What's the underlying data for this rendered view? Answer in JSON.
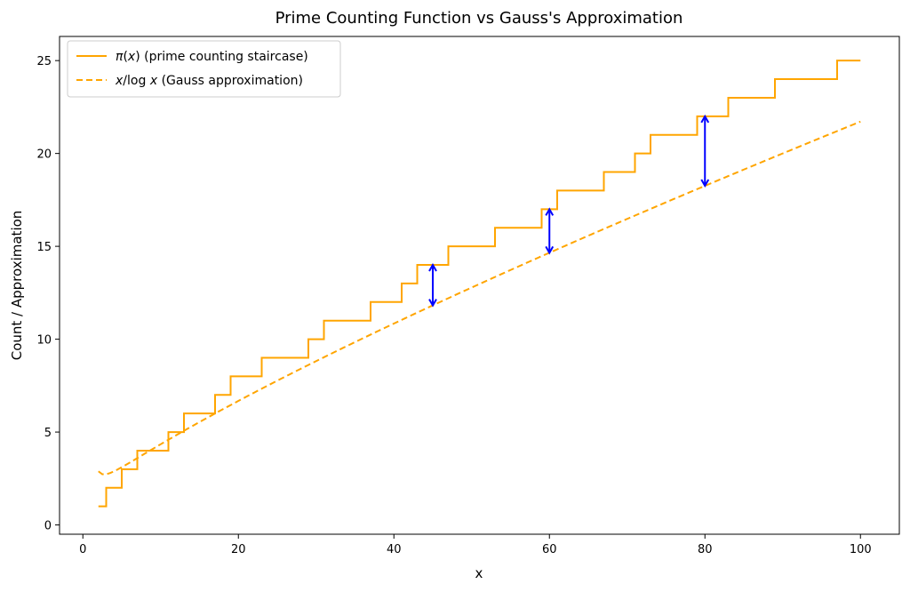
{
  "chart_data": {
    "type": "line",
    "title": "Prime Counting Function vs Gauss's Approximation",
    "xlabel": "x",
    "ylabel": "Count / Approximation",
    "xlim": [
      -3,
      105
    ],
    "ylim": [
      -0.5,
      26.3
    ],
    "xticks": [
      0,
      20,
      40,
      60,
      80,
      100
    ],
    "yticks": [
      0,
      5,
      10,
      15,
      20,
      25
    ],
    "grid": false,
    "legend_position": "top-left",
    "legend": {
      "pi_text": "(prime counting staircase)",
      "gauss_text": "(Gauss approximation)"
    },
    "colors": {
      "series": "#ffa500",
      "arrows": "#0000ff"
    },
    "series": [
      {
        "name": "π(x) (prime counting staircase)",
        "style": "step-post",
        "x": [
          2,
          3,
          5,
          7,
          11,
          13,
          17,
          19,
          23,
          29,
          31,
          37,
          41,
          43,
          47,
          53,
          59,
          61,
          67,
          71,
          73,
          79,
          83,
          89,
          97,
          100
        ],
        "y": [
          1,
          2,
          3,
          4,
          5,
          6,
          7,
          8,
          9,
          10,
          11,
          12,
          13,
          14,
          15,
          16,
          17,
          18,
          19,
          20,
          21,
          22,
          23,
          24,
          25,
          25
        ]
      },
      {
        "name": "x/log x (Gauss approximation)",
        "style": "dashed",
        "function": "x/ln(x)",
        "x_range": [
          2,
          100
        ]
      }
    ],
    "annotations": [
      {
        "type": "double-arrow",
        "x": 45,
        "y_start": 11.82,
        "y_end": 14
      },
      {
        "type": "double-arrow",
        "x": 60,
        "y_start": 14.65,
        "y_end": 17
      },
      {
        "type": "double-arrow",
        "x": 80,
        "y_start": 18.26,
        "y_end": 22
      }
    ]
  }
}
